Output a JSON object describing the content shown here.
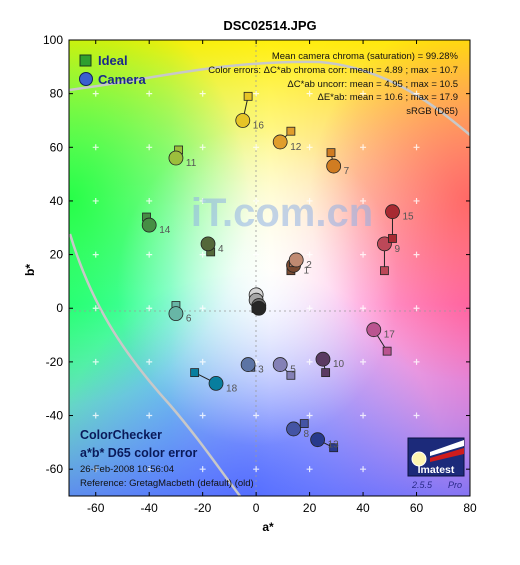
{
  "chart_data": {
    "type": "scatter",
    "title": "DSC02514.JPG",
    "xlabel": "a*",
    "ylabel": "b*",
    "xlim": [
      -70,
      80
    ],
    "ylim": [
      -70,
      100
    ],
    "xticks": [
      -60,
      -40,
      -20,
      0,
      20,
      40,
      60,
      80
    ],
    "yticks": [
      -60,
      -40,
      -20,
      0,
      20,
      40,
      60,
      80,
      100
    ],
    "legend": {
      "position": "top-left",
      "entries": [
        {
          "name": "Ideal",
          "marker": "square"
        },
        {
          "name": "Camera",
          "marker": "circle"
        }
      ]
    },
    "stats": [
      "Mean camera chroma (saturation) = 99.28%",
      "Color errors:  ΔC*ab chroma corr:  mean = 4.89 ;  max = 10.7",
      "ΔC*ab uncorr:  mean = 4.95 ;  max = 10.5",
      "ΔE*ab:  mean = 10.6 ;  max = 17.9",
      "sRGB (D65)"
    ],
    "caption": {
      "line1": "ColorChecker",
      "line2": "a*b* D65 color error",
      "date": "26-Feb-2008 10:56:04",
      "reference": "Reference: GretagMacbeth (default) (old)"
    },
    "watermark": "iT.com.cn",
    "logo": {
      "name": "Imatest",
      "version": "2.5.5",
      "edition": "Pro"
    },
    "patches": [
      {
        "id": "1",
        "ideal": [
          13,
          14
        ],
        "camera": [
          14,
          16
        ],
        "color": "#7a4a32"
      },
      {
        "id": "2",
        "ideal": [
          14,
          17
        ],
        "camera": [
          15,
          18
        ],
        "color": "#c08a72"
      },
      {
        "id": "3",
        "ideal": [
          -2,
          -22
        ],
        "camera": [
          -3,
          -21
        ],
        "color": "#5c74a4"
      },
      {
        "id": "4",
        "ideal": [
          -17,
          21
        ],
        "camera": [
          -18,
          24
        ],
        "color": "#54683a"
      },
      {
        "id": "5",
        "ideal": [
          13,
          -25
        ],
        "camera": [
          9,
          -21
        ],
        "color": "#8480b6"
      },
      {
        "id": "6",
        "ideal": [
          -30,
          1
        ],
        "camera": [
          -30,
          -2
        ],
        "color": "#68b6a6"
      },
      {
        "id": "7",
        "ideal": [
          28,
          58
        ],
        "camera": [
          29,
          53
        ],
        "color": "#d07c22"
      },
      {
        "id": "8",
        "ideal": [
          18,
          -43
        ],
        "camera": [
          14,
          -45
        ],
        "color": "#4454a4"
      },
      {
        "id": "9",
        "ideal": [
          48,
          14
        ],
        "camera": [
          48,
          24
        ],
        "color": "#bc4858"
      },
      {
        "id": "10",
        "ideal": [
          26,
          -24
        ],
        "camera": [
          25,
          -19
        ],
        "color": "#5a3a62"
      },
      {
        "id": "11",
        "ideal": [
          -29,
          59
        ],
        "camera": [
          -30,
          56
        ],
        "color": "#9cbe3c"
      },
      {
        "id": "12",
        "ideal": [
          13,
          66
        ],
        "camera": [
          9,
          62
        ],
        "color": "#e09e2c"
      },
      {
        "id": "13",
        "ideal": [
          29,
          -52
        ],
        "camera": [
          23,
          -49
        ],
        "color": "#283a8c"
      },
      {
        "id": "14",
        "ideal": [
          -41,
          34
        ],
        "camera": [
          -40,
          31
        ],
        "color": "#468e44"
      },
      {
        "id": "15",
        "ideal": [
          51,
          26
        ],
        "camera": [
          51,
          36
        ],
        "color": "#a82a32"
      },
      {
        "id": "16",
        "ideal": [
          -3,
          79
        ],
        "camera": [
          -5,
          70
        ],
        "color": "#e6c426"
      },
      {
        "id": "17",
        "ideal": [
          49,
          -16
        ],
        "camera": [
          44,
          -8
        ],
        "color": "#ba5490"
      },
      {
        "id": "18",
        "ideal": [
          -23,
          -24
        ],
        "camera": [
          -15,
          -28
        ],
        "color": "#087e9e"
      },
      {
        "id": "",
        "ideal": [
          0,
          0
        ],
        "camera": [
          0,
          5
        ],
        "color": "#d4d4d4"
      },
      {
        "id": "",
        "ideal": [
          0,
          0
        ],
        "camera": [
          0,
          3
        ],
        "color": "#a6a6a6"
      },
      {
        "id": "",
        "ideal": [
          0,
          0
        ],
        "camera": [
          1,
          1
        ],
        "color": "#6c6c6c"
      },
      {
        "id": "",
        "ideal": [
          0,
          0
        ],
        "camera": [
          1,
          0
        ],
        "color": "#262626"
      }
    ]
  }
}
